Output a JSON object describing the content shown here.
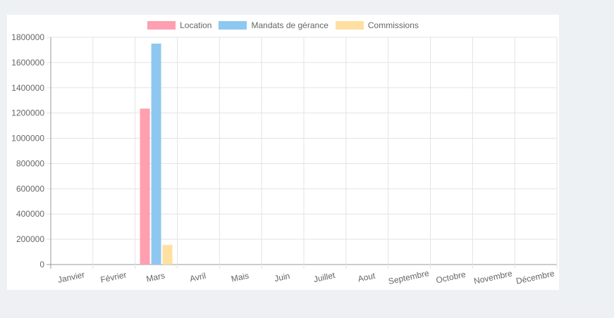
{
  "chart_data": {
    "type": "bar",
    "title": "",
    "xlabel": "",
    "ylabel": "",
    "categories": [
      "Janvier",
      "Février",
      "Mars",
      "Avril",
      "Mais",
      "Juin",
      "Juillet",
      "Aout",
      "Septembre",
      "Octobre",
      "Novembre",
      "Décembre"
    ],
    "series": [
      {
        "name": "Location",
        "color": "#ff9fb0",
        "values": [
          0,
          0,
          1235000,
          0,
          0,
          0,
          0,
          0,
          0,
          0,
          0,
          0
        ]
      },
      {
        "name": "Mandats de gérance",
        "color": "#8ec8f0",
        "values": [
          0,
          0,
          1750000,
          0,
          0,
          0,
          0,
          0,
          0,
          0,
          0,
          0
        ]
      },
      {
        "name": "Commissions",
        "color": "#ffe0a0",
        "values": [
          0,
          0,
          155000,
          0,
          0,
          0,
          0,
          0,
          0,
          0,
          0,
          0
        ]
      }
    ],
    "ylim": [
      0,
      1800000
    ],
    "yticks": [
      0,
      200000,
      400000,
      600000,
      800000,
      1000000,
      1200000,
      1400000,
      1600000,
      1800000
    ],
    "grid": true,
    "legend_position": "top"
  }
}
